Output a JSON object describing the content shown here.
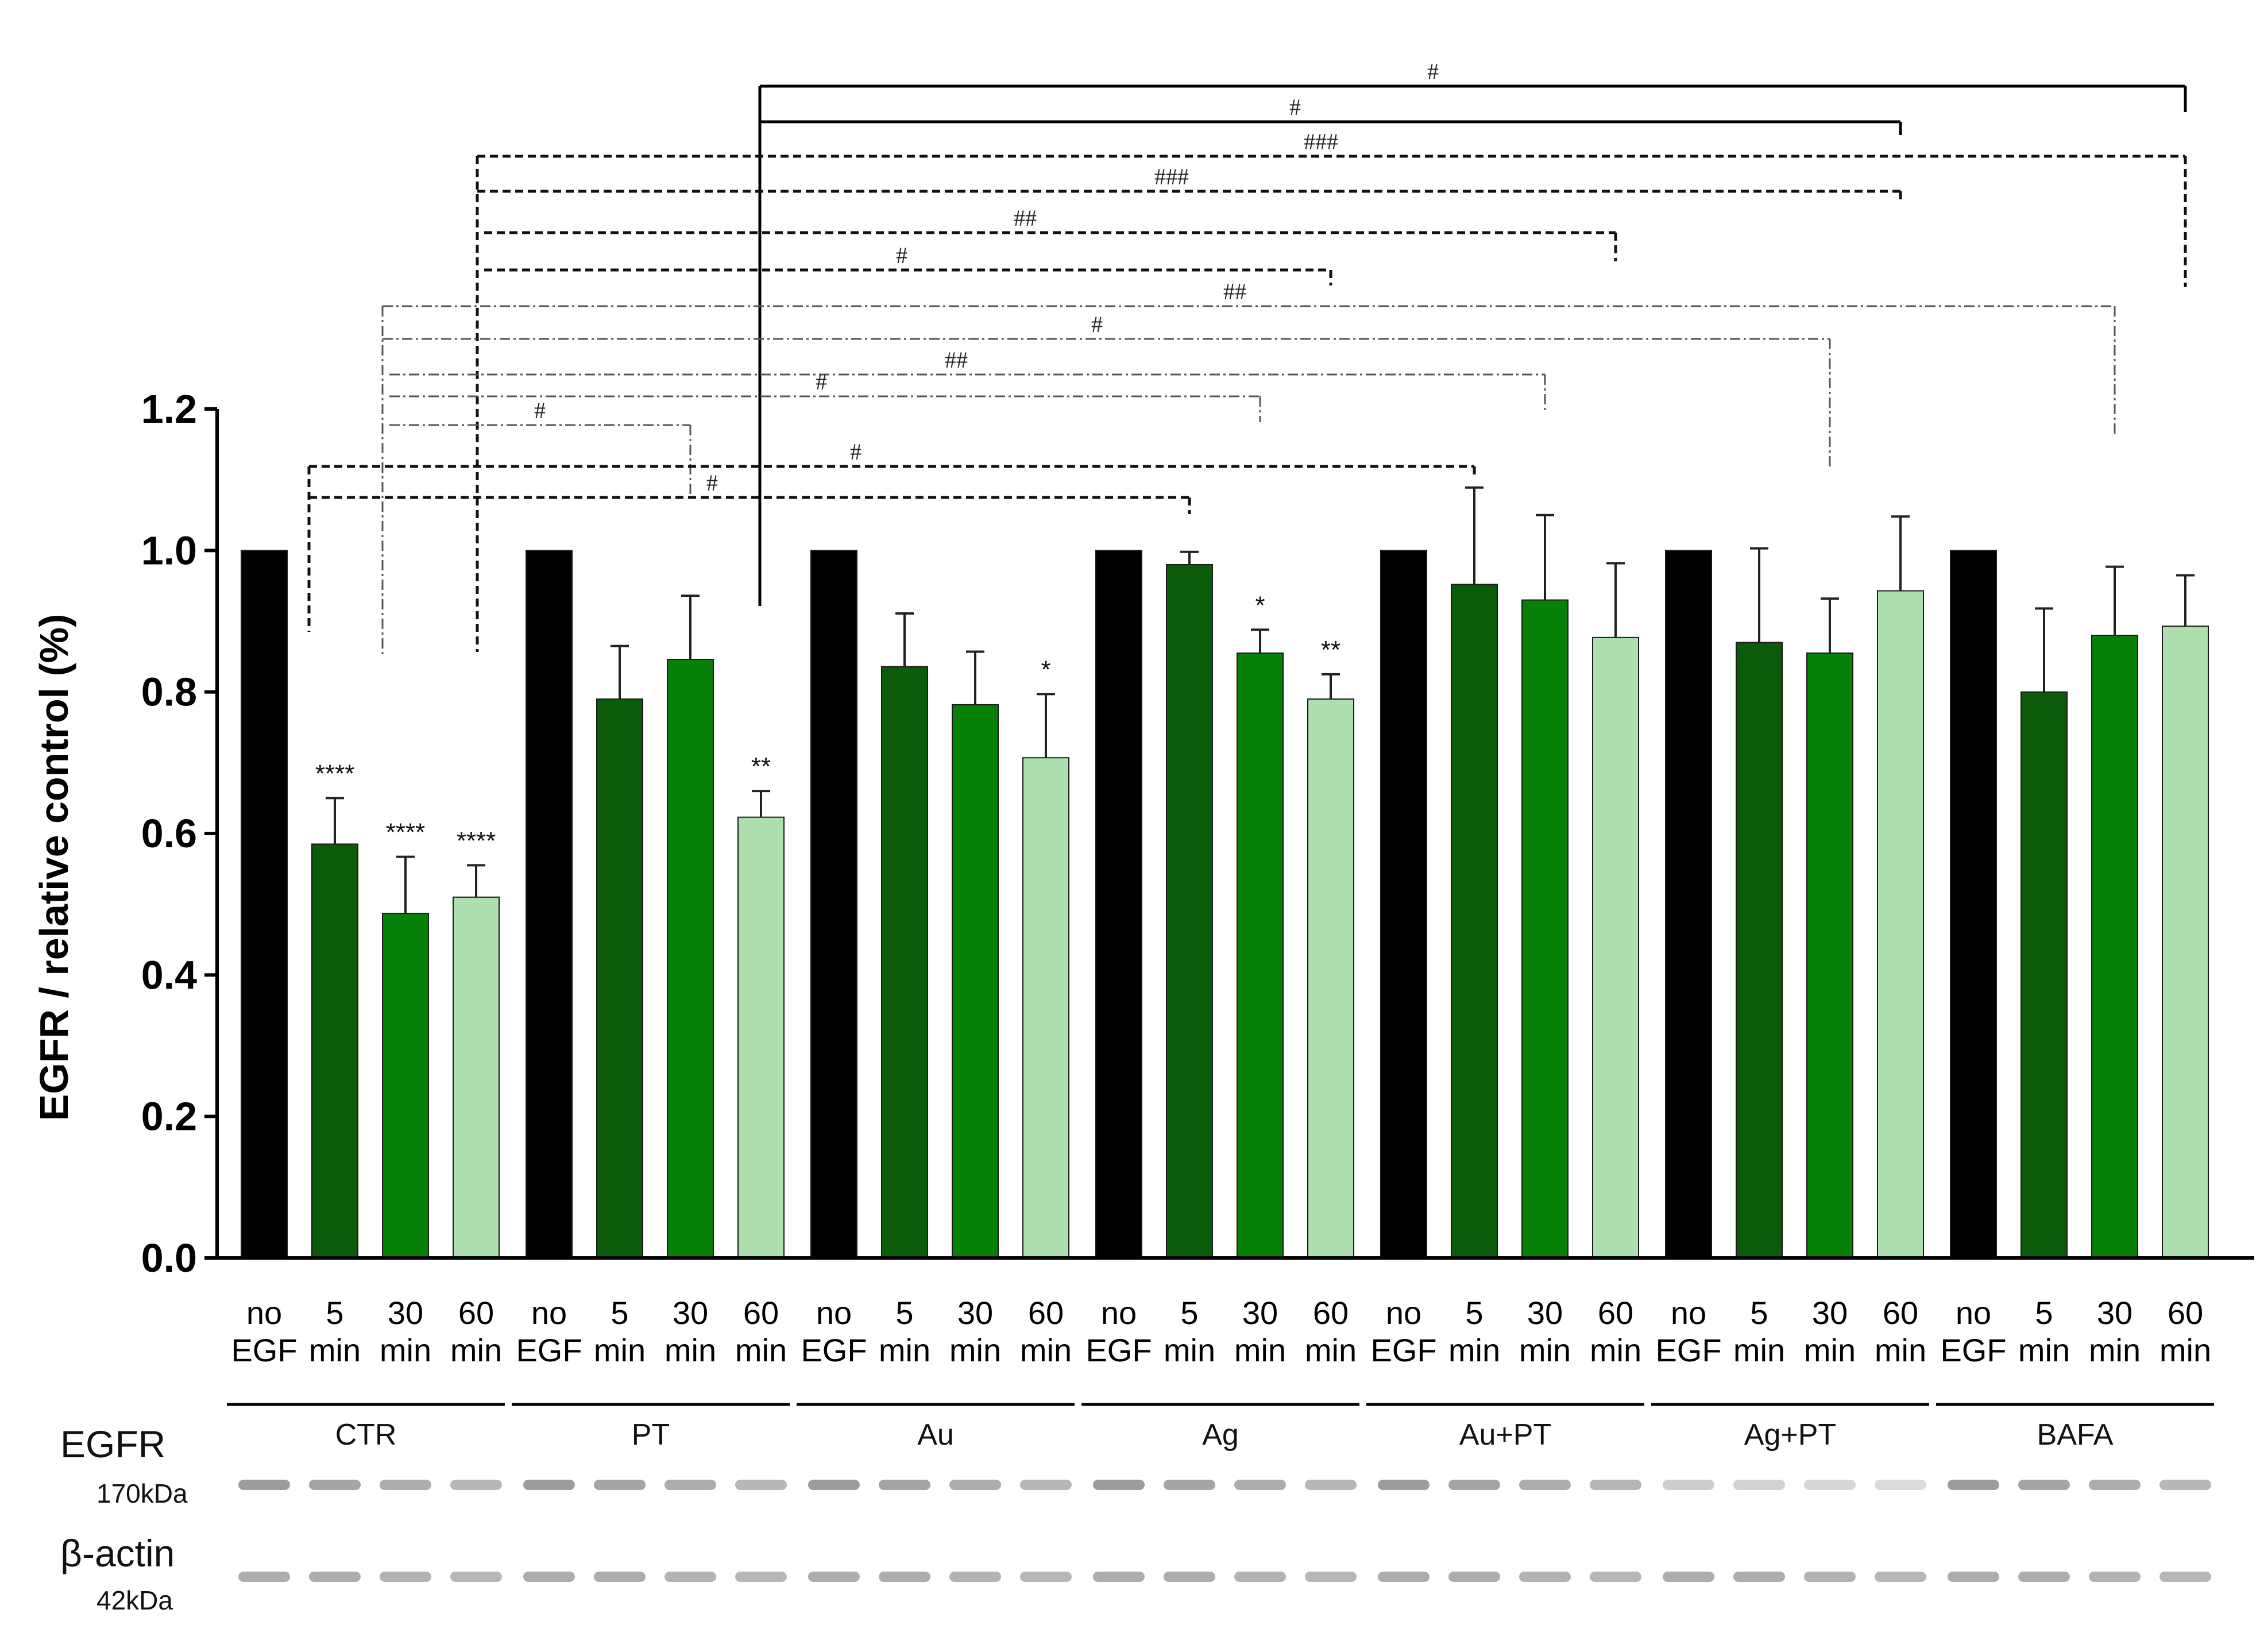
{
  "chart_data": {
    "type": "bar",
    "ylabel": "EGFR / relative control (%)",
    "ylim": [
      0,
      1.2
    ],
    "yticks": [
      "0.0",
      "0.2",
      "0.4",
      "0.6",
      "0.8",
      "1.0",
      "1.2"
    ],
    "conditions": [
      "no EGF",
      "5 min",
      "30 min",
      "60 min"
    ],
    "tick_labels": [
      [
        "no",
        "EGF"
      ],
      [
        "5",
        "min"
      ],
      [
        "30",
        "min"
      ],
      [
        "60",
        "min"
      ]
    ],
    "bar_colors": [
      "#000000",
      "#0a5c0a",
      "#078007",
      "#aedfae"
    ],
    "groups": [
      {
        "name": "CTR",
        "values": [
          1.0,
          0.585,
          0.487,
          0.51
        ],
        "errors": [
          0,
          0.065,
          0.08,
          0.045
        ],
        "sig": [
          "",
          "****",
          "****",
          "****"
        ]
      },
      {
        "name": "PT",
        "values": [
          1.0,
          0.79,
          0.846,
          0.623
        ],
        "errors": [
          0,
          0.075,
          0.09,
          0.037
        ],
        "sig": [
          "",
          "",
          "",
          "**"
        ]
      },
      {
        "name": "Au",
        "values": [
          1.0,
          0.836,
          0.782,
          0.707
        ],
        "errors": [
          0,
          0.075,
          0.075,
          0.09
        ],
        "sig": [
          "",
          "",
          "",
          "*"
        ]
      },
      {
        "name": "Ag",
        "values": [
          1.0,
          0.98,
          0.855,
          0.79
        ],
        "errors": [
          0,
          0.018,
          0.033,
          0.035
        ],
        "sig": [
          "",
          "",
          "*",
          "**"
        ]
      },
      {
        "name": "Au+PT",
        "values": [
          1.0,
          0.952,
          0.93,
          0.877
        ],
        "errors": [
          0,
          0.137,
          0.12,
          0.105
        ],
        "sig": [
          "",
          "",
          "",
          ""
        ]
      },
      {
        "name": "Ag+PT",
        "values": [
          1.0,
          0.87,
          0.855,
          0.943
        ],
        "errors": [
          0,
          0.133,
          0.077,
          0.105
        ],
        "sig": [
          "",
          "",
          "",
          ""
        ]
      },
      {
        "name": "BAFA",
        "values": [
          1.0,
          0.8,
          0.88,
          0.893
        ],
        "errors": [
          0,
          0.118,
          0.097,
          0.072
        ],
        "sig": [
          "",
          "",
          "",
          ""
        ]
      }
    ],
    "comparisons": [
      {
        "from": [
          1,
          3
        ],
        "to": [
          6,
          3
        ],
        "label": "#",
        "style": "solid"
      },
      {
        "from": [
          1,
          3
        ],
        "to": [
          5,
          3
        ],
        "label": "#",
        "style": "solid"
      },
      {
        "from": [
          0,
          3
        ],
        "to": [
          6,
          3
        ],
        "label": "###",
        "style": "dashed"
      },
      {
        "from": [
          0,
          3
        ],
        "to": [
          5,
          3
        ],
        "label": "###",
        "style": "dashed"
      },
      {
        "from": [
          0,
          3
        ],
        "to": [
          4,
          3
        ],
        "label": "##",
        "style": "dashed"
      },
      {
        "from": [
          0,
          3
        ],
        "to": [
          3,
          3
        ],
        "label": "#",
        "style": "dashed"
      },
      {
        "from": [
          0,
          2
        ],
        "to": [
          6,
          2
        ],
        "label": "##",
        "style": "dashdot"
      },
      {
        "from": [
          0,
          2
        ],
        "to": [
          5,
          2
        ],
        "label": "#",
        "style": "dashdot"
      },
      {
        "from": [
          0,
          2
        ],
        "to": [
          4,
          2
        ],
        "label": "##",
        "style": "dashdot"
      },
      {
        "from": [
          0,
          2
        ],
        "to": [
          3,
          2
        ],
        "label": "#",
        "style": "dashdot"
      },
      {
        "from": [
          0,
          2
        ],
        "to": [
          1,
          2
        ],
        "label": "#",
        "style": "dashdot"
      },
      {
        "from": [
          0,
          1
        ],
        "to": [
          4,
          1
        ],
        "label": "#",
        "style": "dashed"
      },
      {
        "from": [
          0,
          1
        ],
        "to": [
          3,
          1
        ],
        "label": "#",
        "style": "dashed"
      }
    ]
  },
  "blot": {
    "egfr_label": "EGFR",
    "egfr_size": "170kDa",
    "actin_label": "β-actin",
    "actin_size": "42kDa"
  }
}
